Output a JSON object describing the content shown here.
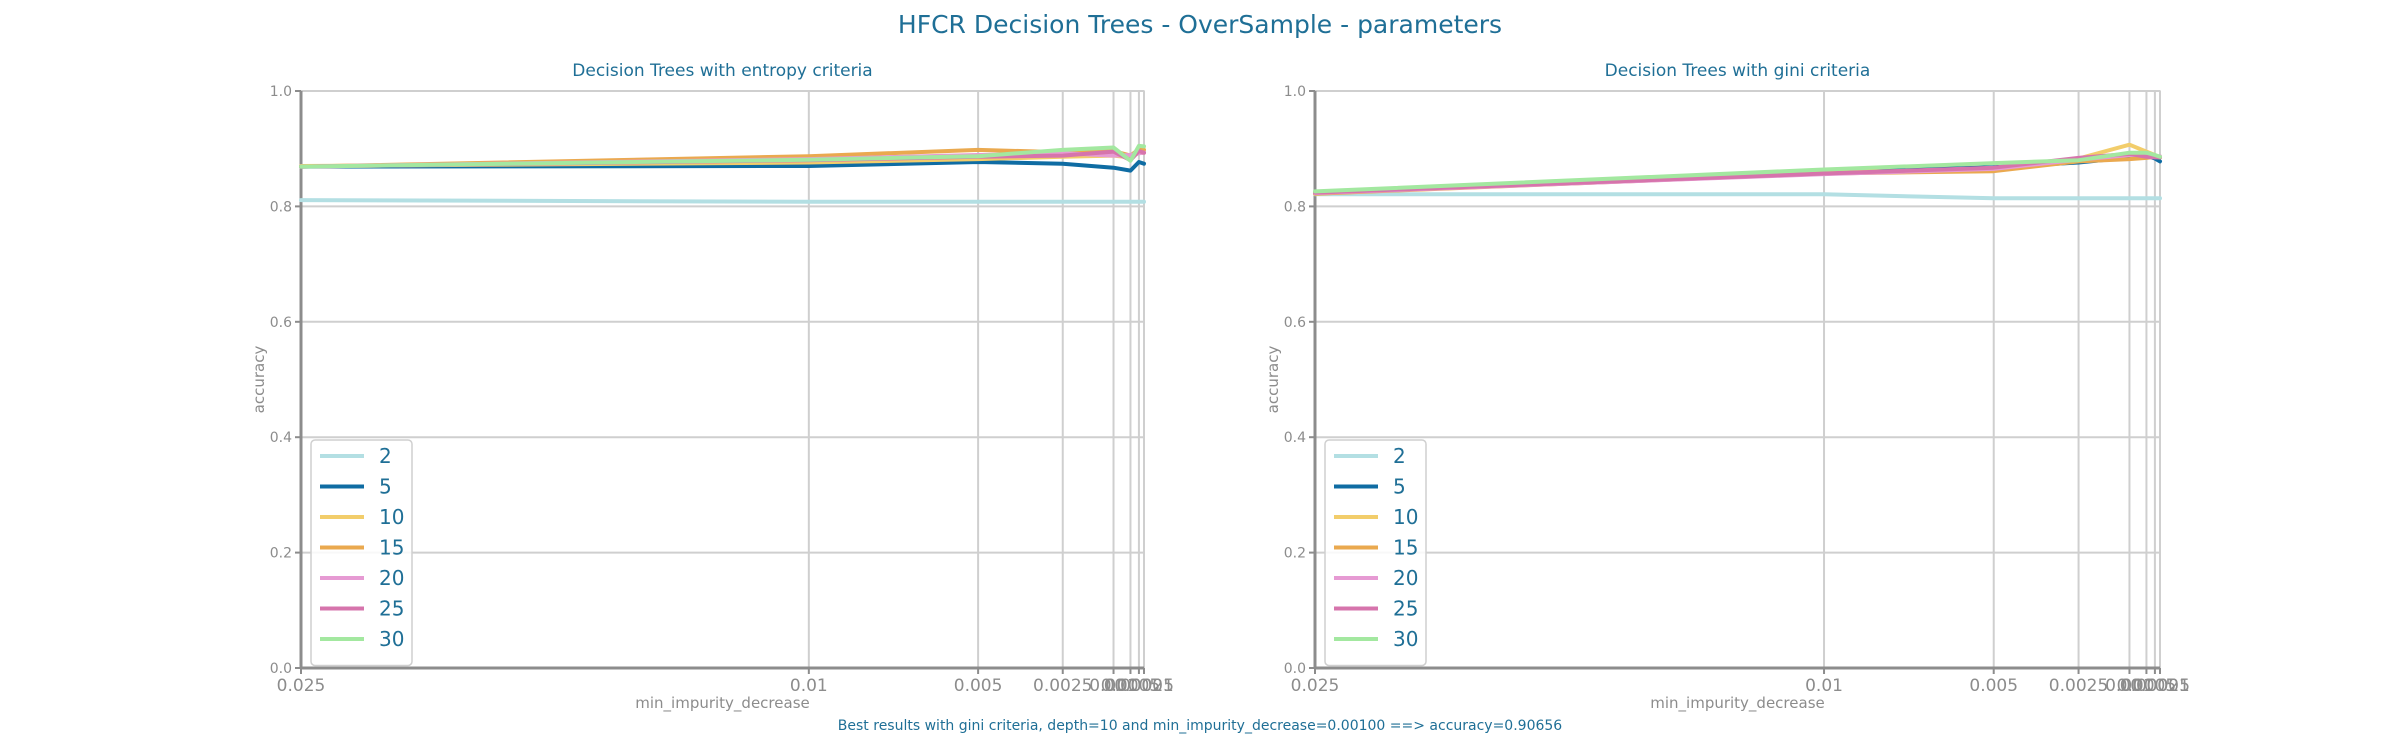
{
  "figure": {
    "suptitle": "HFCR Decision Trees - OverSample - parameters",
    "footer": "Best results with gini criteria, depth=10 and min_impurity_decrease=0.00100 ==> accuracy=0.90656"
  },
  "colors": {
    "text": "#1f6f96",
    "axis": "#8c8c8c",
    "grid": "#cfcfcf"
  },
  "chart_data": [
    {
      "type": "line",
      "title": "Decision Trees with entropy criteria",
      "xlabel": "min_impurity_decrease",
      "ylabel": "accuracy",
      "x": [
        0.025,
        0.01,
        0.005,
        0.0025,
        0.001,
        0.0005,
        0.00025,
        0.0001
      ],
      "x_scale": "reversed-linear",
      "xlim": [
        0.025,
        0.0001
      ],
      "ylim": [
        0,
        1
      ],
      "xticks": [
        0.025,
        0.01,
        0.005,
        0.0025,
        0.001,
        0.0005,
        0.00025,
        0.0001
      ],
      "xtick_labels": [
        "0.025",
        "0.01",
        "0.005",
        "0.0025",
        "0.001",
        "0.0005",
        "0.00025",
        "0.0001"
      ],
      "yticks": [
        0.0,
        0.2,
        0.4,
        0.6,
        0.8,
        1.0
      ],
      "ytick_labels": [
        "0.0",
        "0.2",
        "0.4",
        "0.6",
        "0.8",
        "1.0"
      ],
      "grid": true,
      "legend_position": "lower-left",
      "series": [
        {
          "name": "2",
          "color": "#b3dfe3",
          "values": [
            0.811,
            0.808,
            0.808,
            0.808,
            0.808,
            0.808,
            0.808,
            0.808
          ]
        },
        {
          "name": "5",
          "color": "#0f6ca3",
          "values": [
            0.869,
            0.87,
            0.877,
            0.874,
            0.867,
            0.862,
            0.877,
            0.874
          ]
        },
        {
          "name": "10",
          "color": "#f2cd6b",
          "values": [
            0.87,
            0.876,
            0.882,
            0.886,
            0.888,
            0.885,
            0.893,
            0.893
          ]
        },
        {
          "name": "15",
          "color": "#eaa94f",
          "values": [
            0.869,
            0.887,
            0.898,
            0.894,
            0.896,
            0.888,
            0.899,
            0.898
          ]
        },
        {
          "name": "20",
          "color": "#e69ad3",
          "values": [
            0.869,
            0.882,
            0.889,
            0.892,
            0.888,
            0.889,
            0.892,
            0.893
          ]
        },
        {
          "name": "25",
          "color": "#d674ac",
          "values": [
            0.869,
            0.88,
            0.886,
            0.888,
            0.895,
            0.88,
            0.896,
            0.893
          ]
        },
        {
          "name": "30",
          "color": "#a3e8a0",
          "values": [
            0.869,
            0.881,
            0.887,
            0.898,
            0.902,
            0.879,
            0.905,
            0.904
          ]
        }
      ]
    },
    {
      "type": "line",
      "title": "Decision Trees with gini criteria",
      "xlabel": "min_impurity_decrease",
      "ylabel": "accuracy",
      "x": [
        0.025,
        0.01,
        0.005,
        0.0025,
        0.001,
        0.0005,
        0.00025,
        0.0001
      ],
      "x_scale": "reversed-linear",
      "xlim": [
        0.025,
        0.0001
      ],
      "ylim": [
        0,
        1
      ],
      "xticks": [
        0.025,
        0.01,
        0.005,
        0.0025,
        0.001,
        0.0005,
        0.00025,
        0.0001
      ],
      "xtick_labels": [
        "0.025",
        "0.01",
        "0.005",
        "0.0025",
        "0.001",
        "0.0005",
        "0.00025",
        "0.0001"
      ],
      "yticks": [
        0.0,
        0.2,
        0.4,
        0.6,
        0.8,
        1.0
      ],
      "ytick_labels": [
        "0.0",
        "0.2",
        "0.4",
        "0.6",
        "0.8",
        "1.0"
      ],
      "grid": true,
      "legend_position": "lower-left",
      "series": [
        {
          "name": "2",
          "color": "#b3dfe3",
          "values": [
            0.821,
            0.821,
            0.814,
            0.814,
            0.814,
            0.814,
            0.814,
            0.814
          ]
        },
        {
          "name": "5",
          "color": "#0f6ca3",
          "values": [
            0.825,
            0.86,
            0.868,
            0.876,
            0.885,
            0.888,
            0.883,
            0.878
          ]
        },
        {
          "name": "10",
          "color": "#f2cd6b",
          "values": [
            0.822,
            0.86,
            0.862,
            0.883,
            0.907,
            0.895,
            0.889,
            0.885
          ]
        },
        {
          "name": "15",
          "color": "#eaa94f",
          "values": [
            0.822,
            0.857,
            0.861,
            0.878,
            0.882,
            0.884,
            0.886,
            0.885
          ]
        },
        {
          "name": "20",
          "color": "#e69ad3",
          "values": [
            0.823,
            0.856,
            0.865,
            0.881,
            0.889,
            0.889,
            0.886,
            0.887
          ]
        },
        {
          "name": "25",
          "color": "#d674ac",
          "values": [
            0.824,
            0.857,
            0.867,
            0.884,
            0.891,
            0.886,
            0.885,
            0.885
          ]
        },
        {
          "name": "30",
          "color": "#a3e8a0",
          "values": [
            0.826,
            0.864,
            0.875,
            0.88,
            0.893,
            0.893,
            0.889,
            0.886
          ]
        }
      ]
    }
  ]
}
